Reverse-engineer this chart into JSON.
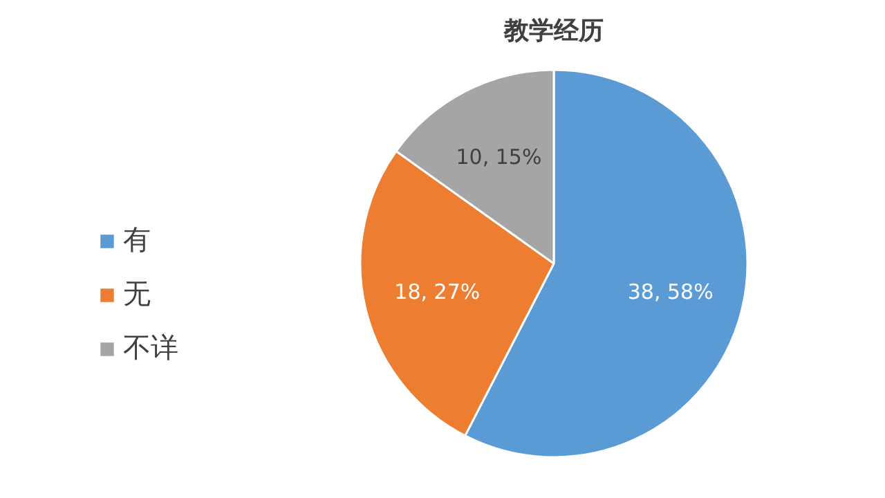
{
  "chart_data": {
    "type": "pie",
    "title": "教学经历",
    "categories": [
      "有",
      "无",
      "不详"
    ],
    "values": [
      38,
      18,
      10
    ],
    "value_labels": [
      "38, 58%",
      "18, 27%",
      "10, 15%"
    ],
    "colors": [
      "#5b9bd5",
      "#ed7d31",
      "#a5a5a5"
    ],
    "legend": "left"
  }
}
